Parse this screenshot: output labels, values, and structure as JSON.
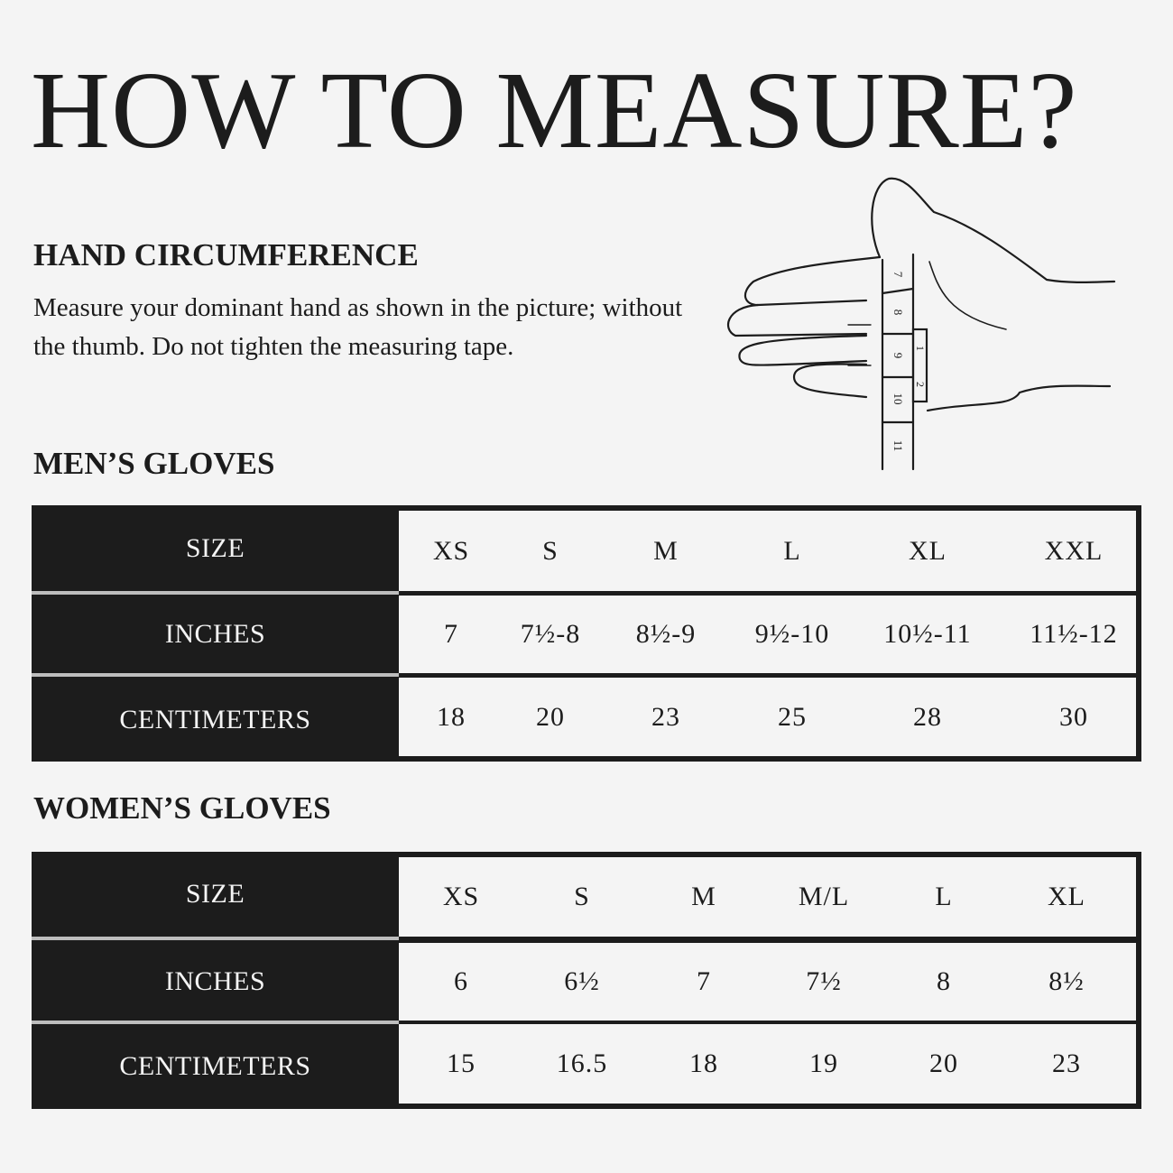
{
  "title": "HOW TO MEASURE?",
  "hand_section": {
    "heading": "HAND CIRCUMFERENCE",
    "description": "Measure your dominant hand as shown in the picture; without the thumb. Do not tighten the measuring tape.",
    "illustration": {
      "tape_marks": [
        "7",
        "8",
        "9",
        "10",
        "11"
      ],
      "tape_marks_back": [
        "1",
        "2"
      ]
    }
  },
  "mens": {
    "heading": "MEN’S GLOVES",
    "rows": [
      {
        "label": "SIZE",
        "values": [
          "XS",
          "S",
          "M",
          "L",
          "XL",
          "XXL"
        ]
      },
      {
        "label": "INCHES",
        "values": [
          "7",
          "7½-8",
          "8½-9",
          "9½-10",
          "10½-11",
          "11½-12"
        ]
      },
      {
        "label": "CENTIMETERS",
        "values": [
          "18",
          "20",
          "23",
          "25",
          "28",
          "30"
        ]
      }
    ]
  },
  "womens": {
    "heading": "WOMEN’S GLOVES",
    "rows": [
      {
        "label": "SIZE",
        "values": [
          "XS",
          "S",
          "M",
          "M/L",
          "L",
          "XL"
        ]
      },
      {
        "label": "INCHES",
        "values": [
          "6",
          "6½",
          "7",
          "7½",
          "8",
          "8½"
        ]
      },
      {
        "label": "CENTIMETERS",
        "values": [
          "15",
          "16.5",
          "18",
          "19",
          "20",
          "23"
        ]
      }
    ]
  },
  "colors": {
    "background": "#f4f4f4",
    "ink": "#1c1c1c"
  }
}
